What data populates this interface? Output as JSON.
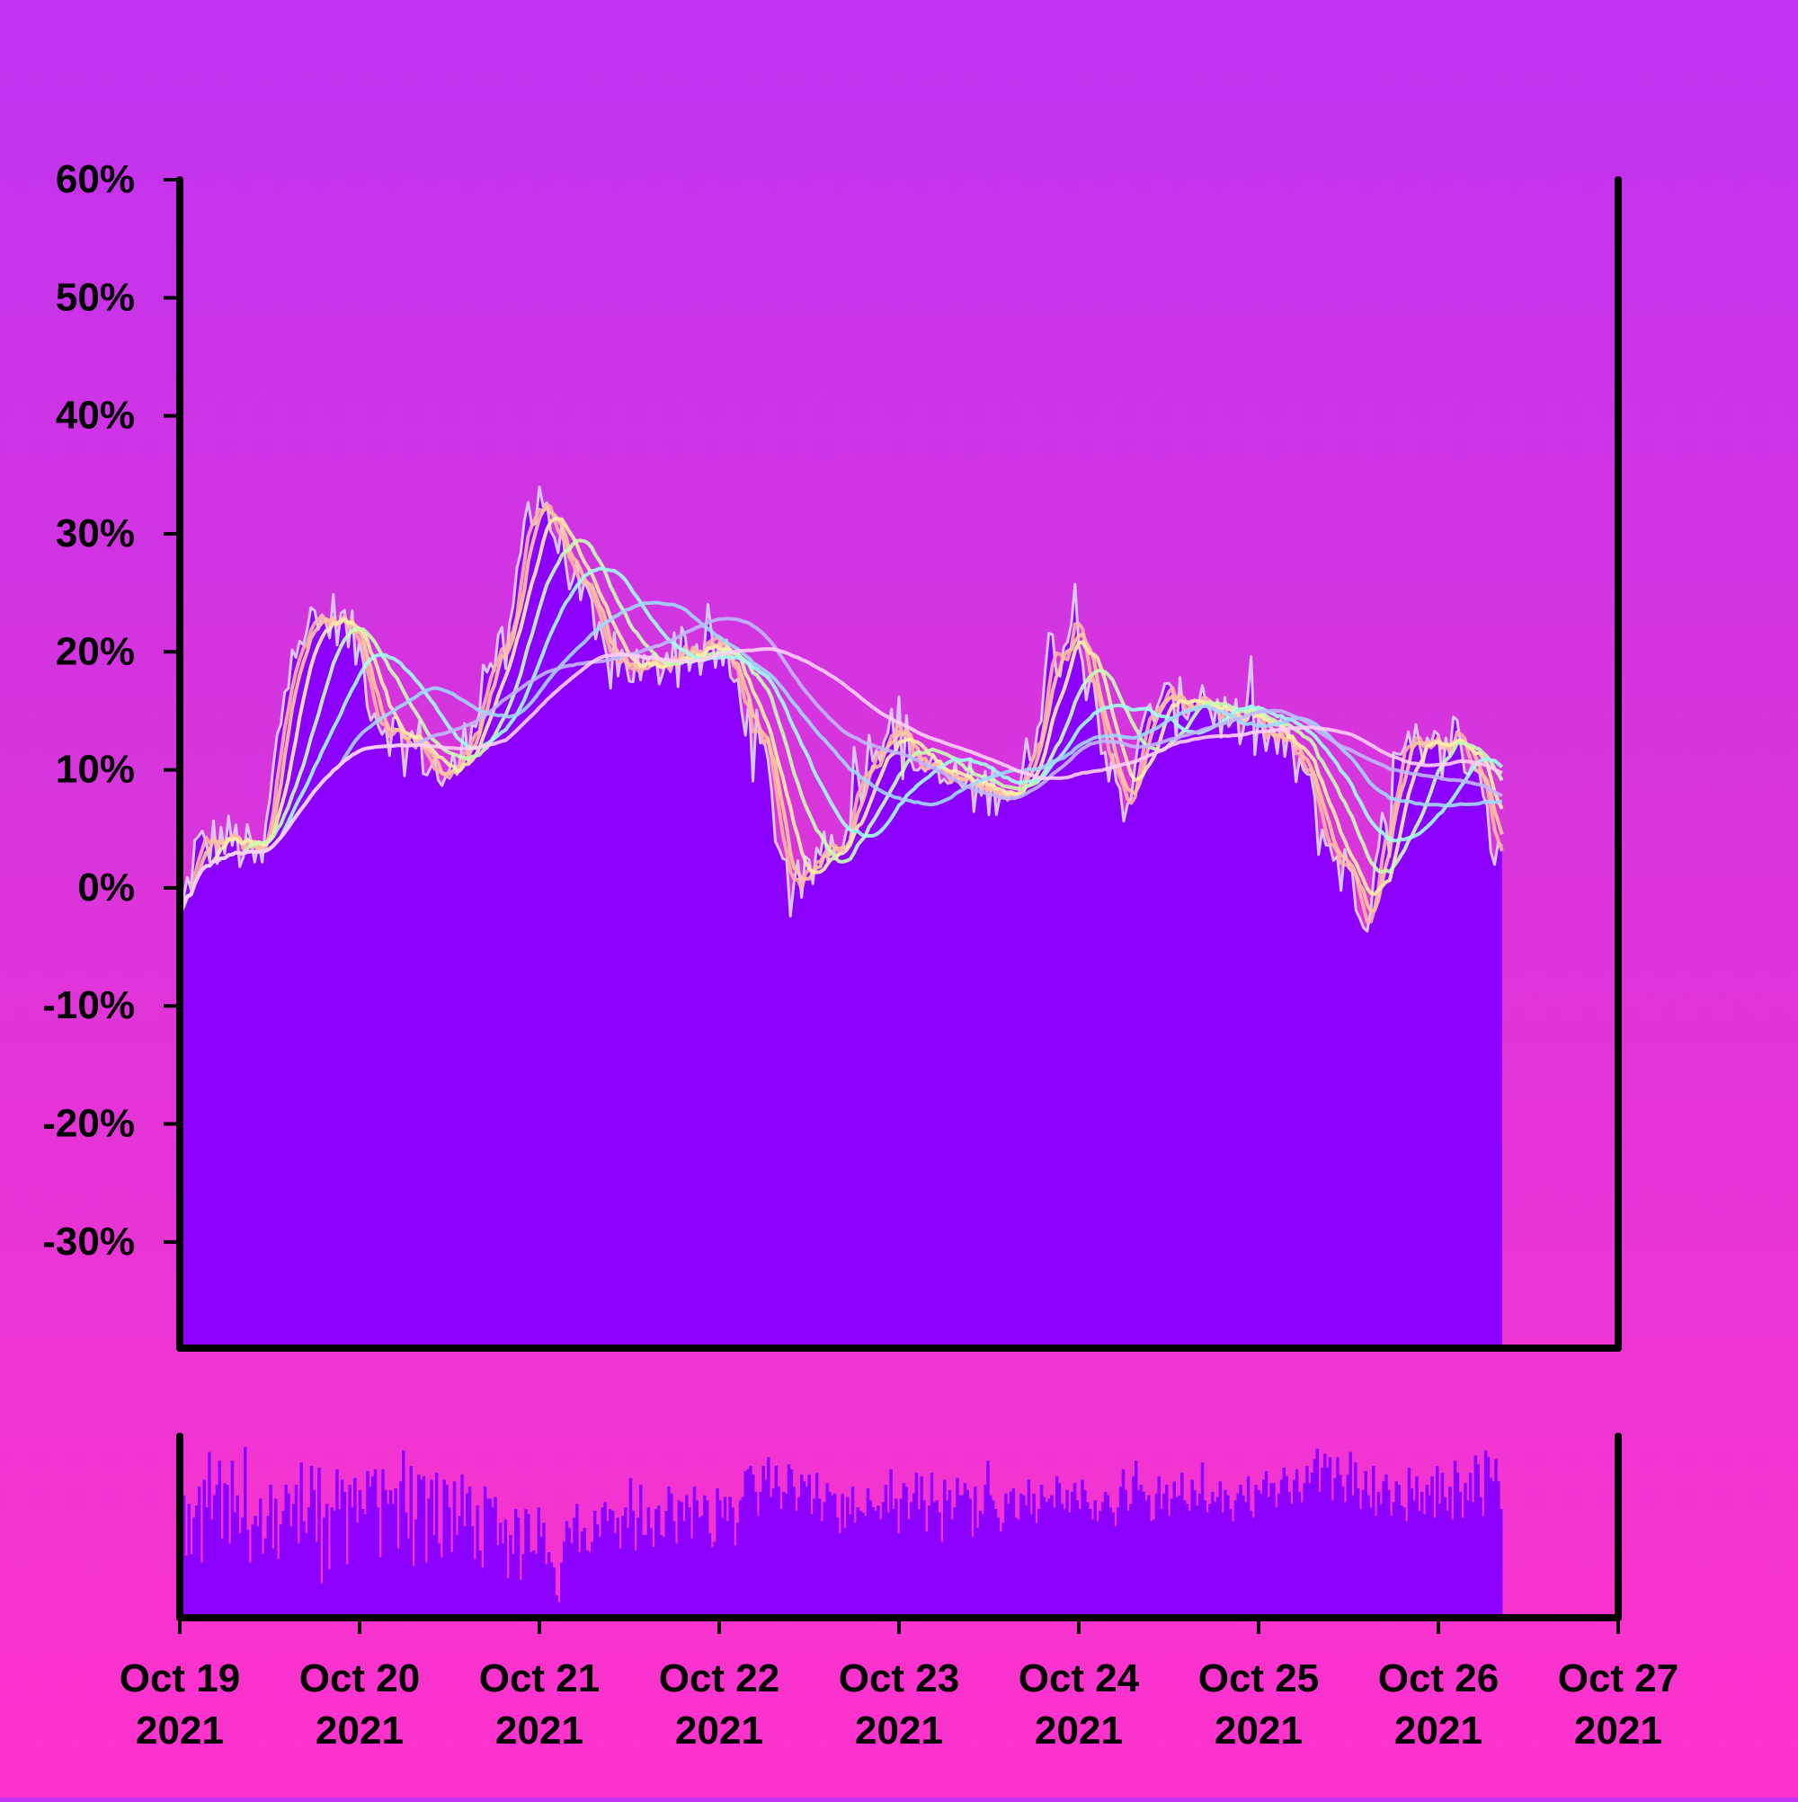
{
  "chart_data": {
    "type": "area",
    "colors": {
      "background_top": "#c032f0",
      "background_bottom": "#ff33cc",
      "area_fill": "#8c00ff",
      "price_line": "#d9c6f5",
      "axis": "#000000",
      "ma_lines": [
        "#ffb3a7",
        "#ffc8a0",
        "#fff0a8",
        "#c6ffb0",
        "#a0fff0",
        "#a0d8ff",
        "#bfb8ff",
        "#ffd0f5"
      ]
    },
    "y_axis": {
      "min": -39,
      "max": 60,
      "ticks": [
        60,
        50,
        40,
        30,
        20,
        10,
        0,
        -10,
        -20,
        -30
      ],
      "tick_labels": [
        "60%",
        "50%",
        "40%",
        "30%",
        "20%",
        "10%",
        "0%",
        "-10%",
        "-20%",
        "-30%"
      ]
    },
    "x_axis": {
      "start": "2021-10-19",
      "end": "2021-10-27",
      "ticks": [
        "2021-10-19",
        "2021-10-20",
        "2021-10-21",
        "2021-10-22",
        "2021-10-23",
        "2021-10-24",
        "2021-10-25",
        "2021-10-26",
        "2021-10-27"
      ],
      "tick_labels": [
        [
          "Oct 19",
          "2021"
        ],
        [
          "Oct 20",
          "2021"
        ],
        [
          "Oct 21",
          "2021"
        ],
        [
          "Oct 22",
          "2021"
        ],
        [
          "Oct 23",
          "2021"
        ],
        [
          "Oct 24",
          "2021"
        ],
        [
          "Oct 25",
          "2021"
        ],
        [
          "Oct 26",
          "2021"
        ],
        [
          "Oct 27",
          "2021"
        ]
      ]
    },
    "price_keypoints": [
      [
        "2021-10-19 00:00",
        -3
      ],
      [
        "2021-10-19 02:00",
        3
      ],
      [
        "2021-10-19 05:00",
        4
      ],
      [
        "2021-10-19 07:00",
        4
      ],
      [
        "2021-10-19 09:00",
        3
      ],
      [
        "2021-10-19 11:00",
        2
      ],
      [
        "2021-10-19 13:00",
        12
      ],
      [
        "2021-10-19 15:00",
        22
      ],
      [
        "2021-10-19 18:00",
        22
      ],
      [
        "2021-10-19 21:00",
        23
      ],
      [
        "2021-10-20 00:00",
        20
      ],
      [
        "2021-10-20 02:00",
        15
      ],
      [
        "2021-10-20 05:00",
        13
      ],
      [
        "2021-10-20 08:00",
        12
      ],
      [
        "2021-10-20 10:00",
        10
      ],
      [
        "2021-10-20 12:00",
        9
      ],
      [
        "2021-10-20 14:00",
        12
      ],
      [
        "2021-10-20 17:00",
        19
      ],
      [
        "2021-10-20 20:00",
        20
      ],
      [
        "2021-10-20 22:00",
        31
      ],
      [
        "2021-10-21 00:00",
        34
      ],
      [
        "2021-10-21 02:00",
        30
      ],
      [
        "2021-10-21 05:00",
        26
      ],
      [
        "2021-10-21 07:00",
        22
      ],
      [
        "2021-10-21 09:00",
        19
      ],
      [
        "2021-10-21 12:00",
        19
      ],
      [
        "2021-10-21 15:00",
        18
      ],
      [
        "2021-10-21 18:00",
        21
      ],
      [
        "2021-10-21 21:00",
        20
      ],
      [
        "2021-10-22 00:00",
        20
      ],
      [
        "2021-10-22 03:00",
        16
      ],
      [
        "2021-10-22 06:00",
        11
      ],
      [
        "2021-10-22 08:00",
        4
      ],
      [
        "2021-10-22 10:00",
        -2
      ],
      [
        "2021-10-22 12:00",
        1
      ],
      [
        "2021-10-22 14:00",
        4
      ],
      [
        "2021-10-22 16:00",
        4
      ],
      [
        "2021-10-22 18:00",
        8
      ],
      [
        "2021-10-22 21:00",
        13
      ],
      [
        "2021-10-23 00:00",
        14
      ],
      [
        "2021-10-23 02:00",
        11
      ],
      [
        "2021-10-23 05:00",
        9
      ],
      [
        "2021-10-23 08:00",
        9
      ],
      [
        "2021-10-23 11:00",
        8
      ],
      [
        "2021-10-23 14:00",
        9
      ],
      [
        "2021-10-23 16:00",
        8
      ],
      [
        "2021-10-23 18:00",
        13
      ],
      [
        "2021-10-23 20:00",
        20
      ],
      [
        "2021-10-23 22:00",
        21
      ],
      [
        "2021-10-24 00:00",
        23
      ],
      [
        "2021-10-24 02:00",
        17
      ],
      [
        "2021-10-24 04:00",
        10
      ],
      [
        "2021-10-24 06:00",
        7
      ],
      [
        "2021-10-24 08:00",
        11
      ],
      [
        "2021-10-24 10:00",
        16
      ],
      [
        "2021-10-24 13:00",
        15
      ],
      [
        "2021-10-24 16:00",
        17
      ],
      [
        "2021-10-24 18:00",
        15
      ],
      [
        "2021-10-24 21:00",
        14
      ],
      [
        "2021-10-25 00:00",
        13
      ],
      [
        "2021-10-25 03:00",
        12
      ],
      [
        "2021-10-25 06:00",
        10
      ],
      [
        "2021-10-25 08:00",
        5
      ],
      [
        "2021-10-25 10:00",
        3
      ],
      [
        "2021-10-25 12:00",
        1
      ],
      [
        "2021-10-25 14:00",
        -3
      ],
      [
        "2021-10-25 16:00",
        2
      ],
      [
        "2021-10-25 18:00",
        10
      ],
      [
        "2021-10-25 20:00",
        11
      ],
      [
        "2021-10-25 23:00",
        11
      ],
      [
        "2021-10-26 02:00",
        13
      ],
      [
        "2021-10-26 04:00",
        11
      ],
      [
        "2021-10-26 06:00",
        9
      ],
      [
        "2021-10-26 07:00",
        4
      ],
      [
        "2021-10-26 08:00",
        2
      ],
      [
        "2021-10-26 08:30",
        3
      ]
    ],
    "moving_average_windows_hours": [
      2,
      3,
      5,
      9,
      14,
      22,
      32,
      44
    ],
    "volume_values": [
      0.98,
      0.71,
      0.36,
      0.66,
      0.37,
      0.58,
      0.65,
      0.76,
      0.32,
      0.8,
      0.64,
      0.96,
      0.57,
      0.71,
      0.77,
      0.91,
      0.46,
      0.78,
      0.77,
      0.43,
      0.91,
      0.61,
      0.71,
      0.49,
      0.58,
      0.99,
      0.51,
      0.32,
      0.54,
      0.59,
      0.53,
      0.69,
      0.37,
      0.46,
      0.59,
      0.77,
      0.4,
      0.69,
      0.34,
      0.54,
      0.62,
      0.77,
      0.72,
      0.53,
      0.66,
      0.77,
      0.43,
      0.9,
      0.56,
      0.49,
      0.64,
      0.88,
      0.74,
      0.44,
      0.87,
      0.2,
      0.58,
      0.66,
      0.28,
      0.64,
      0.62,
      0.86,
      0.63,
      0.8,
      0.73,
      0.31,
      0.77,
      0.64,
      0.81,
      0.55,
      0.74,
      0.63,
      0.6,
      0.85,
      0.76,
      0.82,
      0.86,
      0.64,
      0.35,
      0.86,
      0.74,
      0.66,
      0.74,
      0.66,
      0.75,
      0.4,
      0.79,
      0.97,
      0.61,
      0.46,
      0.88,
      0.3,
      0.57,
      0.83,
      0.8,
      0.82,
      0.32,
      0.69,
      0.8,
      0.48,
      0.84,
      0.43,
      0.35,
      0.8,
      0.77,
      0.64,
      0.38,
      0.79,
      0.48,
      0.59,
      0.83,
      0.53,
      0.72,
      0.76,
      0.53,
      0.34,
      0.65,
      0.39,
      0.29,
      0.76,
      0.69,
      0.69,
      0.64,
      0.7,
      0.42,
      0.55,
      0.43,
      0.57,
      0.23,
      0.48,
      0.37,
      0.63,
      0.58,
      0.22,
      0.37,
      0.63,
      0.6,
      0.38,
      0.39,
      0.37,
      0.64,
      0.47,
      0.55,
      0.31,
      0.38,
      0.32,
      0.29,
      0.13,
      0.09,
      0.32,
      0.44,
      0.56,
      0.52,
      0.43,
      0.58,
      0.66,
      0.38,
      0.5,
      0.52,
      0.39,
      0.38,
      0.44,
      0.62,
      0.54,
      0.47,
      0.64,
      0.67,
      0.56,
      0.63,
      0.62,
      0.49,
      0.58,
      0.4,
      0.59,
      0.64,
      0.52,
      0.81,
      0.62,
      0.39,
      0.58,
      0.77,
      0.48,
      0.48,
      0.64,
      0.52,
      0.41,
      0.63,
      0.65,
      0.48,
      0.47,
      0.62,
      0.76,
      0.72,
      0.56,
      0.43,
      0.68,
      0.67,
      0.56,
      0.71,
      0.64,
      0.46,
      0.76,
      0.68,
      0.58,
      0.59,
      0.71,
      0.68,
      0.49,
      0.41,
      0.44,
      0.75,
      0.68,
      0.58,
      0.7,
      0.56,
      0.7,
      0.64,
      0.42,
      0.55,
      0.68,
      0.7,
      0.85,
      0.86,
      0.88,
      0.83,
      0.73,
      0.59,
      0.73,
      0.88,
      0.8,
      0.93,
      0.7,
      0.75,
      0.88,
      0.76,
      0.63,
      0.73,
      0.72,
      0.89,
      0.86,
      0.76,
      0.62,
      0.7,
      0.83,
      0.79,
      0.76,
      0.83,
      0.6,
      0.69,
      0.84,
      0.69,
      0.56,
      0.67,
      0.78,
      0.73,
      0.71,
      0.72,
      0.58,
      0.49,
      0.72,
      0.52,
      0.7,
      0.6,
      0.76,
      0.55,
      0.64,
      0.62,
      0.61,
      0.59,
      0.75,
      0.68,
      0.64,
      0.62,
      0.65,
      0.57,
      0.67,
      0.77,
      0.61,
      0.86,
      0.63,
      0.69,
      0.49,
      0.69,
      0.78,
      0.76,
      0.57,
      0.67,
      0.72,
      0.84,
      0.63,
      0.82,
      0.68,
      0.5,
      0.65,
      0.84,
      0.67,
      0.68,
      0.61,
      0.44,
      0.8,
      0.68,
      0.74,
      0.57,
      0.64,
      0.81,
      0.71,
      0.71,
      0.78,
      0.74,
      0.69,
      0.47,
      0.76,
      0.52,
      0.62,
      0.6,
      0.77,
      0.91,
      0.71,
      0.68,
      0.63,
      0.58,
      0.5,
      0.55,
      0.72,
      0.66,
      0.73,
      0.75,
      0.58,
      0.57,
      0.72,
      0.71,
      0.65,
      0.8,
      0.6,
      0.72,
      0.55,
      0.63,
      0.77,
      0.7,
      0.67,
      0.69,
      0.71,
      0.64,
      0.82,
      0.78,
      0.66,
      0.63,
      0.74,
      0.61,
      0.73,
      0.78,
      0.68,
      0.63,
      0.8,
      0.74,
      0.67,
      0.63,
      0.57,
      0.68,
      0.56,
      0.62,
      0.67,
      0.73,
      0.71,
      0.64,
      0.61,
      0.53,
      0.64,
      0.76,
      0.86,
      0.74,
      0.62,
      0.66,
      0.82,
      0.91,
      0.74,
      0.77,
      0.73,
      0.68,
      0.71,
      0.56,
      0.57,
      0.72,
      0.82,
      0.63,
      0.72,
      0.77,
      0.59,
      0.69,
      0.79,
      0.7,
      0.71,
      0.84,
      0.68,
      0.66,
      0.62,
      0.8,
      0.74,
      0.65,
      0.72,
      0.9,
      0.68,
      0.61,
      0.66,
      0.73,
      0.67,
      0.7,
      0.79,
      0.61,
      0.74,
      0.71,
      0.63,
      0.56,
      0.68,
      0.72,
      0.77,
      0.71,
      0.67,
      0.82,
      0.62,
      0.58,
      0.77,
      0.74,
      0.72,
      0.8,
      0.85,
      0.7,
      0.78,
      0.78,
      0.64,
      0.72,
      0.8,
      0.87,
      0.82,
      0.73,
      0.66,
      0.8,
      0.86,
      0.73,
      0.67,
      0.78,
      0.88,
      0.78,
      0.84,
      0.92,
      0.98,
      0.73,
      0.87,
      0.95,
      0.87,
      0.93,
      0.68,
      0.81,
      0.93,
      0.83,
      0.76,
      0.67,
      0.83,
      0.96,
      0.71,
      0.9,
      0.75,
      0.63,
      0.74,
      0.85,
      0.71,
      0.64,
      0.88,
      0.59,
      0.73,
      0.66,
      0.79,
      0.83,
      0.74,
      0.59,
      0.67,
      0.79,
      0.77,
      0.65,
      0.64,
      0.56,
      0.87,
      0.75,
      0.68,
      0.82,
      0.62,
      0.73,
      0.6,
      0.77,
      0.71,
      0.82,
      0.58,
      0.88,
      0.66,
      0.84,
      0.7,
      0.62,
      0.76,
      0.57,
      0.91,
      0.84,
      0.73,
      0.58,
      0.78,
      0.68,
      0.84,
      0.67,
      0.94,
      0.89,
      0.7,
      0.59,
      0.97,
      0.93,
      0.81,
      0.79,
      0.92,
      0.79,
      0.63
    ]
  }
}
